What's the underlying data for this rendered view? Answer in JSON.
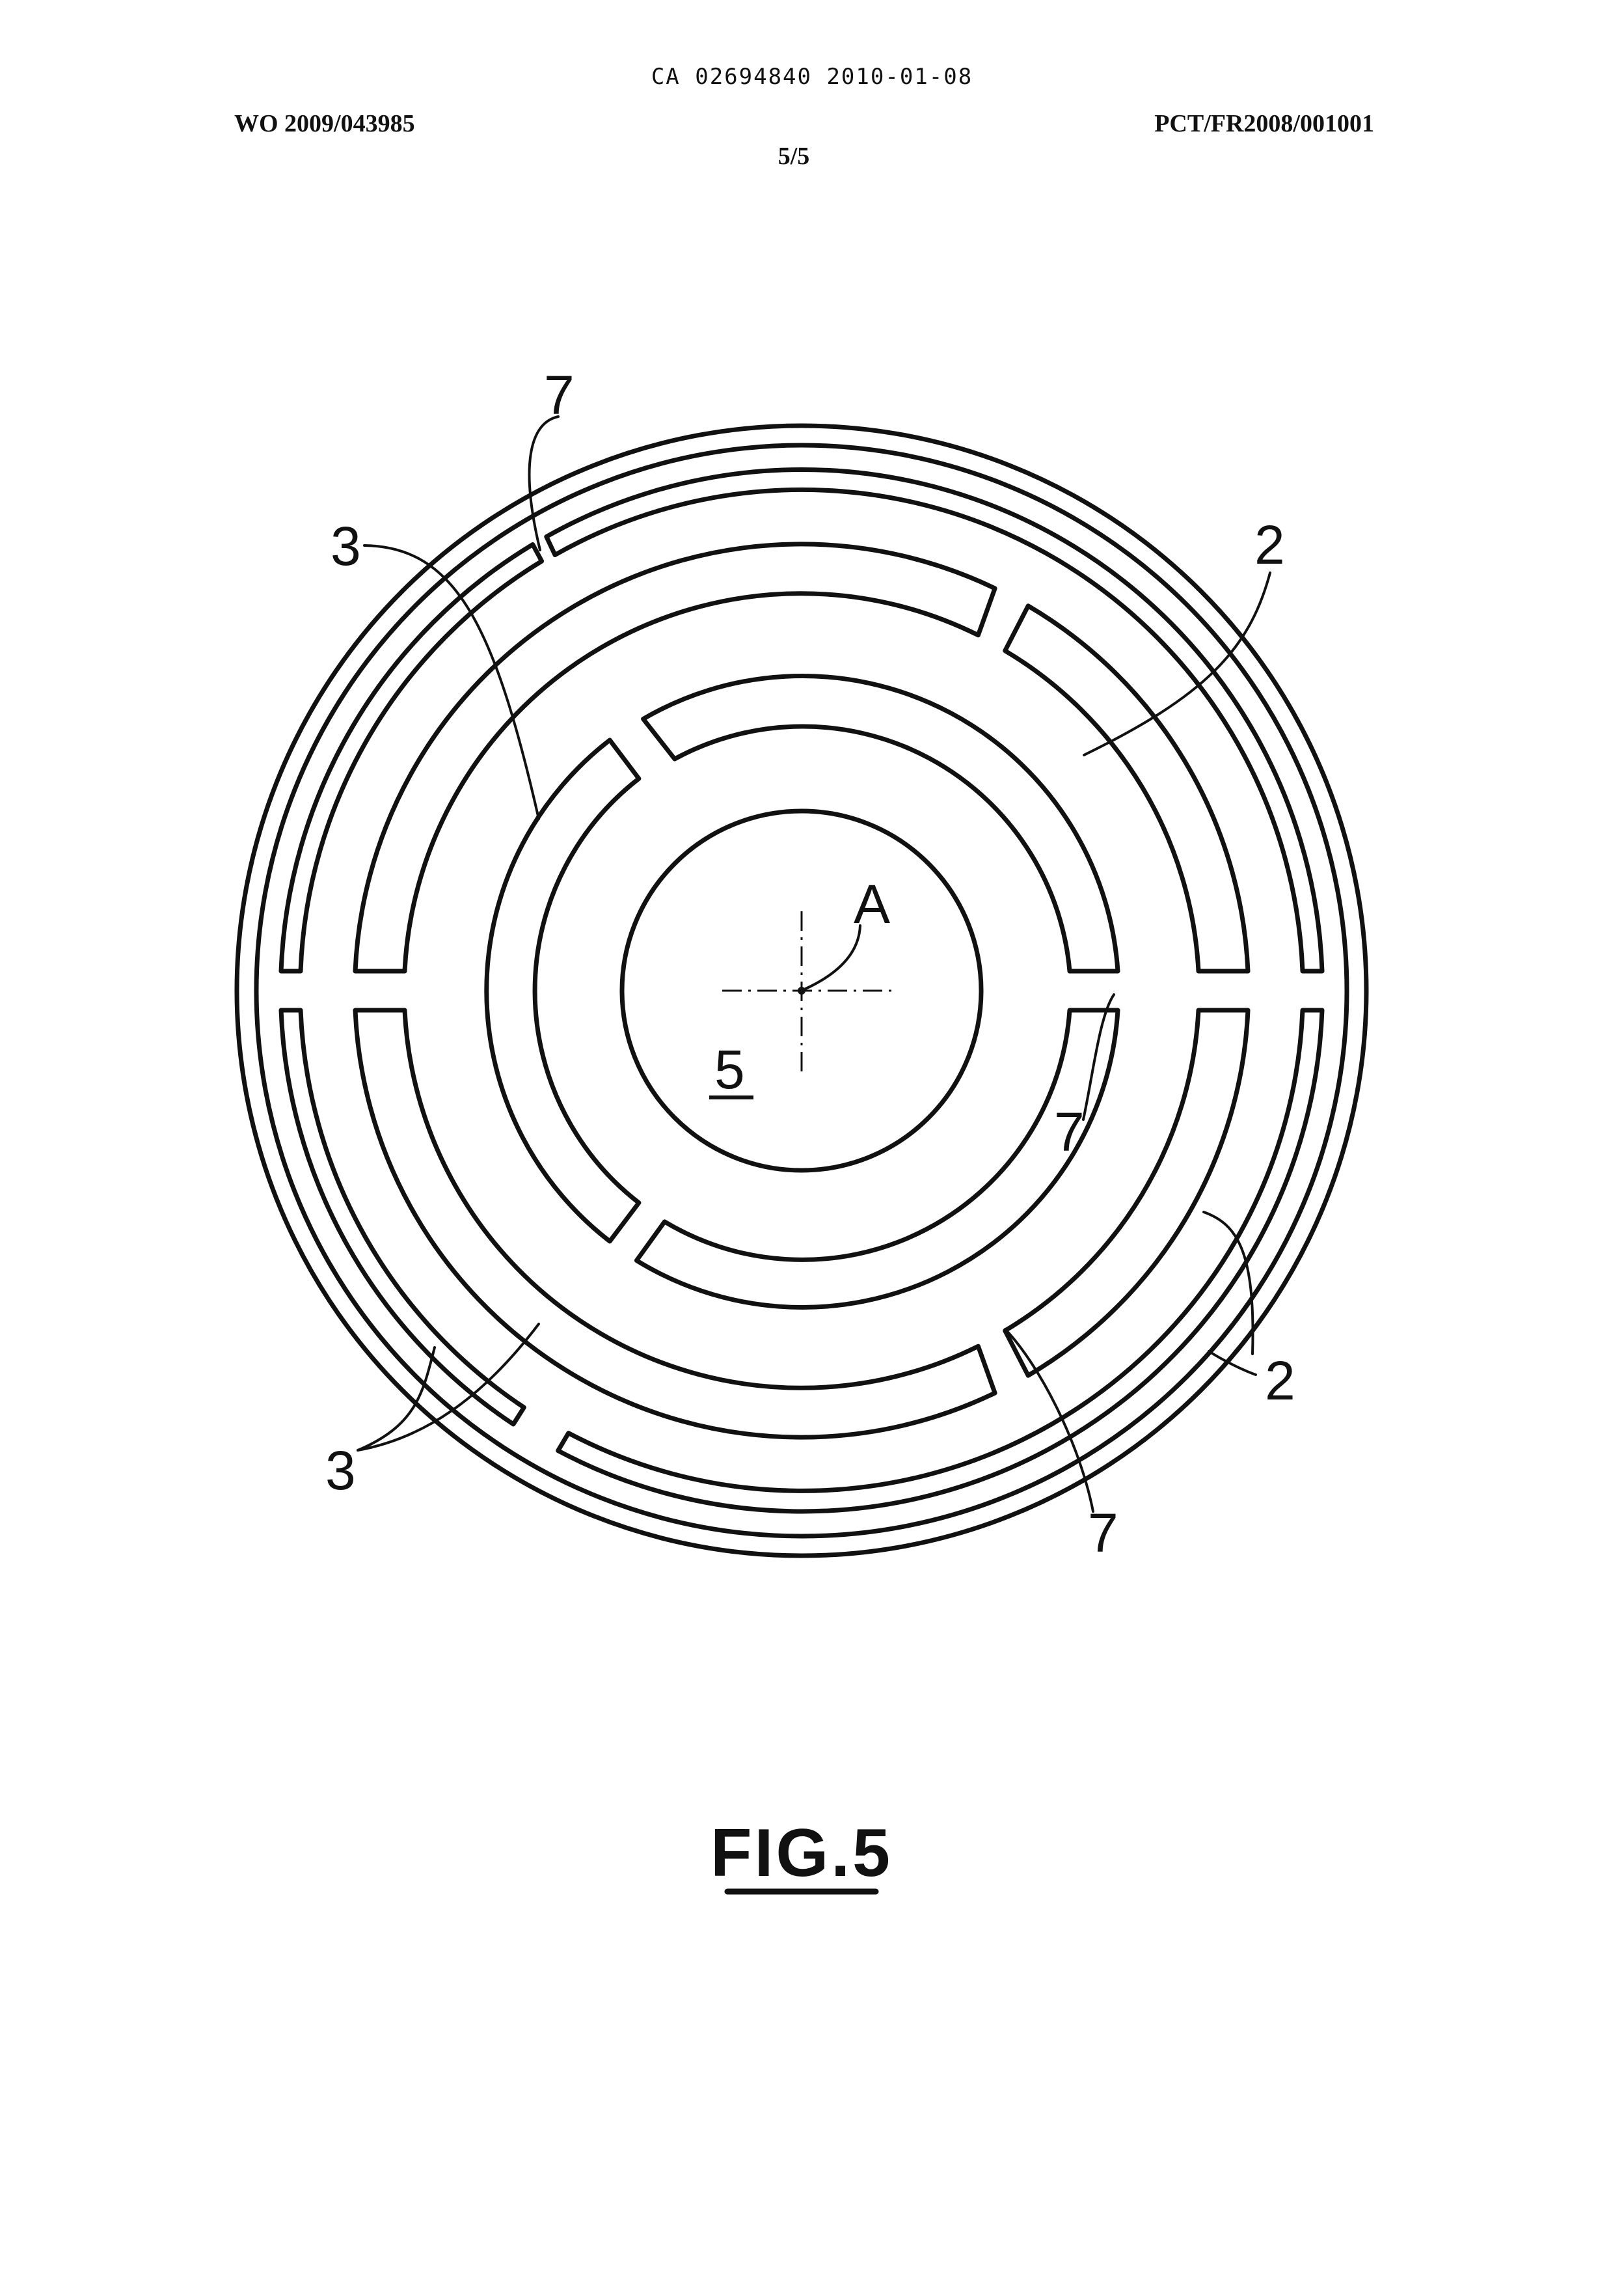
{
  "header": {
    "application_number": "CA 02694840 2010-01-08",
    "publication_number": "WO 2009/043985",
    "pct_number": "PCT/FR2008/001001",
    "sheet": "5/5"
  },
  "figure": {
    "caption": "FIG.5",
    "reference_labels": {
      "top_left_7": "7",
      "left_3": "3",
      "top_right_2": "2",
      "axis_A": "A",
      "center_5": "5",
      "right_7": "7",
      "bottom_right_2": "2",
      "bottom_left_3": "3",
      "bottom_right_7": "7"
    }
  }
}
